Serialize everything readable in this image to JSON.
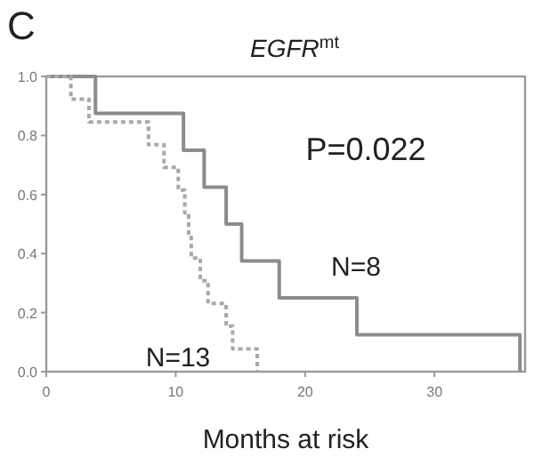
{
  "chart_data": {
    "type": "step",
    "title": "EGFR$^{mt}$",
    "xlabel": "Months at risk",
    "xlim": [
      0,
      37
    ],
    "ylim": [
      0,
      1
    ],
    "xticks": [
      0,
      10,
      20,
      30
    ],
    "yticks": [
      {
        "value": 0,
        "label": "0.0"
      },
      {
        "value": 0.2,
        "label": "0.2"
      },
      {
        "value": 0.4,
        "label": "0.4"
      },
      {
        "value": 0.6,
        "label": "0.6"
      },
      {
        "value": 0.8,
        "label": "0.8"
      },
      {
        "value": 1,
        "label": "1.0"
      }
    ],
    "grid": false,
    "marker": "none",
    "series": [
      {
        "color": "#8c8c8c",
        "line_style": "solid",
        "x": [
          0,
          3.8,
          10.6,
          12.2,
          13.9,
          15.1,
          18,
          24,
          36.6
        ],
        "values": [
          1,
          0.875,
          0.75,
          0.625,
          0.5,
          0.375,
          0.25,
          0.125,
          0
        ]
      },
      {
        "color": "#a8a8a8",
        "line_style": "dotted",
        "x": [
          0,
          1.9,
          3.3,
          7.9,
          9.1,
          10.2,
          10.7,
          11,
          11.2,
          11.9,
          12.5,
          13.9,
          14.4,
          16.3
        ],
        "values": [
          1,
          0.923,
          0.846,
          0.769,
          0.692,
          0.615,
          0.538,
          0.462,
          0.385,
          0.308,
          0.231,
          0.154,
          0.077,
          0
        ]
      }
    ],
    "annotations": [
      "C",
      "P=0.022",
      "N=8",
      "N=13"
    ]
  }
}
